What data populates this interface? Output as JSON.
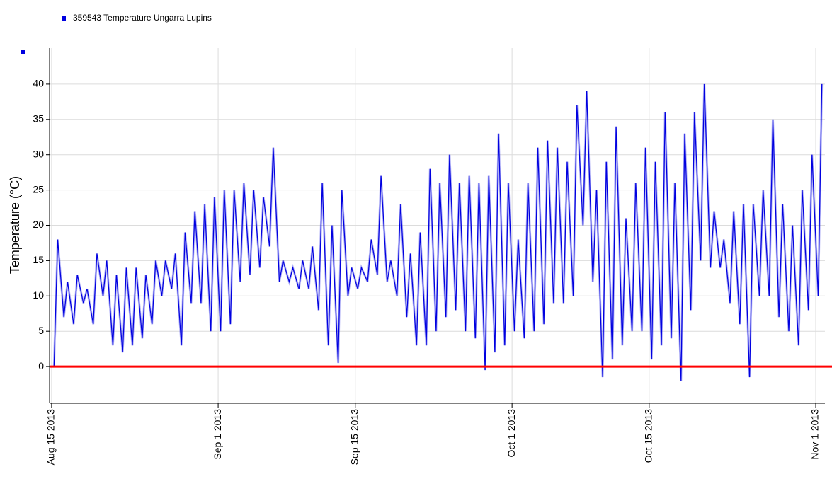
{
  "chart_data": {
    "type": "line",
    "legend": "359543  Temperature Ungarra Lupins",
    "ylabel": "Temperature (°C)",
    "ylim": [
      -5.2,
      45.1
    ],
    "yticks": [
      0,
      5,
      10,
      15,
      20,
      25,
      30,
      35,
      40
    ],
    "xlim": [
      "2013-08-14T19:00",
      "2013-11-01T22:30"
    ],
    "xticks": [
      {
        "value": "2013-08-15",
        "label": "Aug 15 2013"
      },
      {
        "value": "2013-09-01",
        "label": "Sep 1 2013"
      },
      {
        "value": "2013-09-15",
        "label": "Sep 15 2013"
      },
      {
        "value": "2013-10-01",
        "label": "Oct 1 2013"
      },
      {
        "value": "2013-10-15",
        "label": "Oct 15 2013"
      },
      {
        "value": "2013-11-01",
        "label": "Nov 1 2013"
      }
    ],
    "grid": true,
    "reference_line": {
      "value": 0,
      "color": "#ff0000"
    },
    "series": [
      {
        "name": "359543  Temperature Ungarra Lupins",
        "color": "#0000e0",
        "x": [
          "2013-08-15T06:00",
          "2013-08-15T15:00",
          "2013-08-16T06:00",
          "2013-08-16T15:00",
          "2013-08-17T06:00",
          "2013-08-17T15:00",
          "2013-08-18T06:00",
          "2013-08-18T15:00",
          "2013-08-19T06:00",
          "2013-08-19T15:00",
          "2013-08-20T06:00",
          "2013-08-20T15:00",
          "2013-08-21T06:00",
          "2013-08-21T15:00",
          "2013-08-22T06:00",
          "2013-08-22T15:00",
          "2013-08-23T06:00",
          "2013-08-23T15:00",
          "2013-08-24T06:00",
          "2013-08-24T15:00",
          "2013-08-25T06:00",
          "2013-08-25T15:00",
          "2013-08-26T06:00",
          "2013-08-26T15:00",
          "2013-08-27T06:00",
          "2013-08-27T15:00",
          "2013-08-28T06:00",
          "2013-08-28T15:00",
          "2013-08-29T06:00",
          "2013-08-29T15:00",
          "2013-08-30T06:00",
          "2013-08-30T15:00",
          "2013-08-31T06:00",
          "2013-08-31T15:00",
          "2013-09-01T06:00",
          "2013-09-01T15:00",
          "2013-09-02T06:00",
          "2013-09-02T15:00",
          "2013-09-03T06:00",
          "2013-09-03T15:00",
          "2013-09-04T06:00",
          "2013-09-04T15:00",
          "2013-09-05T06:00",
          "2013-09-05T15:00",
          "2013-09-06T06:00",
          "2013-09-06T15:00",
          "2013-09-07T06:00",
          "2013-09-07T15:00",
          "2013-09-08T06:00",
          "2013-09-08T15:00",
          "2013-09-09T06:00",
          "2013-09-09T15:00",
          "2013-09-10T06:00",
          "2013-09-10T15:00",
          "2013-09-11T06:00",
          "2013-09-11T15:00",
          "2013-09-12T06:00",
          "2013-09-12T15:00",
          "2013-09-13T06:00",
          "2013-09-13T15:00",
          "2013-09-14T06:00",
          "2013-09-14T15:00",
          "2013-09-15T06:00",
          "2013-09-15T15:00",
          "2013-09-16T06:00",
          "2013-09-16T15:00",
          "2013-09-17T06:00",
          "2013-09-17T15:00",
          "2013-09-18T06:00",
          "2013-09-18T15:00",
          "2013-09-19T06:00",
          "2013-09-19T15:00",
          "2013-09-20T06:00",
          "2013-09-20T15:00",
          "2013-09-21T06:00",
          "2013-09-21T15:00",
          "2013-09-22T06:00",
          "2013-09-22T15:00",
          "2013-09-23T06:00",
          "2013-09-23T15:00",
          "2013-09-24T06:00",
          "2013-09-24T15:00",
          "2013-09-25T06:00",
          "2013-09-25T15:00",
          "2013-09-26T06:00",
          "2013-09-26T15:00",
          "2013-09-27T06:00",
          "2013-09-27T15:00",
          "2013-09-28T06:00",
          "2013-09-28T15:00",
          "2013-09-29T06:00",
          "2013-09-29T15:00",
          "2013-09-30T06:00",
          "2013-09-30T15:00",
          "2013-10-01T06:00",
          "2013-10-01T15:00",
          "2013-10-02T06:00",
          "2013-10-02T15:00",
          "2013-10-03T06:00",
          "2013-10-03T15:00",
          "2013-10-04T06:00",
          "2013-10-04T15:00",
          "2013-10-05T06:00",
          "2013-10-05T15:00",
          "2013-10-06T06:00",
          "2013-10-06T15:00",
          "2013-10-07T06:00",
          "2013-10-07T15:00",
          "2013-10-08T06:00",
          "2013-10-08T15:00",
          "2013-10-09T06:00",
          "2013-10-09T15:00",
          "2013-10-10T06:00",
          "2013-10-10T15:00",
          "2013-10-11T06:00",
          "2013-10-11T15:00",
          "2013-10-12T06:00",
          "2013-10-12T15:00",
          "2013-10-13T06:00",
          "2013-10-13T15:00",
          "2013-10-14T06:00",
          "2013-10-14T15:00",
          "2013-10-15T06:00",
          "2013-10-15T15:00",
          "2013-10-16T06:00",
          "2013-10-16T15:00",
          "2013-10-17T06:00",
          "2013-10-17T15:00",
          "2013-10-18T06:00",
          "2013-10-18T15:00",
          "2013-10-19T06:00",
          "2013-10-19T15:00",
          "2013-10-20T06:00",
          "2013-10-20T15:00",
          "2013-10-21T06:00",
          "2013-10-21T15:00",
          "2013-10-22T06:00",
          "2013-10-22T15:00",
          "2013-10-23T06:00",
          "2013-10-23T15:00",
          "2013-10-24T06:00",
          "2013-10-24T15:00",
          "2013-10-25T06:00",
          "2013-10-25T15:00",
          "2013-10-26T06:00",
          "2013-10-26T15:00",
          "2013-10-27T06:00",
          "2013-10-27T15:00",
          "2013-10-28T06:00",
          "2013-10-28T15:00",
          "2013-10-29T06:00",
          "2013-10-29T15:00",
          "2013-10-30T06:00",
          "2013-10-30T15:00",
          "2013-10-31T06:00",
          "2013-10-31T15:00",
          "2013-11-01T06:00",
          "2013-11-01T15:00"
        ],
        "values": [
          0,
          18,
          7,
          12,
          6,
          13,
          9,
          11,
          6,
          16,
          10,
          15,
          3,
          13,
          2,
          14,
          3,
          14,
          4,
          13,
          6,
          15,
          10,
          15,
          11,
          16,
          3,
          19,
          9,
          22,
          9,
          23,
          5,
          24,
          5,
          25,
          6,
          25,
          12,
          26,
          13,
          25,
          14,
          24,
          17,
          31,
          12,
          15,
          12,
          14,
          11,
          15,
          11,
          17,
          8,
          26,
          3,
          20,
          0.5,
          25,
          10,
          14,
          11,
          14,
          12,
          18,
          13,
          27,
          12,
          15,
          10,
          23,
          7,
          16,
          3,
          19,
          3,
          28,
          5,
          26,
          7,
          30,
          8,
          26,
          5,
          27,
          4,
          26,
          -0.5,
          27,
          2,
          33,
          3,
          26,
          5,
          18,
          4,
          26,
          5,
          31,
          6,
          32,
          9,
          31,
          9,
          29,
          10,
          37,
          20,
          39,
          12,
          25,
          -1.5,
          29,
          1,
          34,
          3,
          21,
          5,
          26,
          5,
          31,
          1,
          29,
          3,
          36,
          4,
          26,
          -2,
          33,
          8,
          36,
          15,
          40,
          14,
          22,
          14,
          18,
          9,
          22,
          6,
          23,
          -1.5,
          23,
          10,
          25,
          10,
          35,
          7,
          23,
          5,
          20,
          3,
          25,
          8,
          30,
          10,
          40
        ]
      }
    ]
  }
}
